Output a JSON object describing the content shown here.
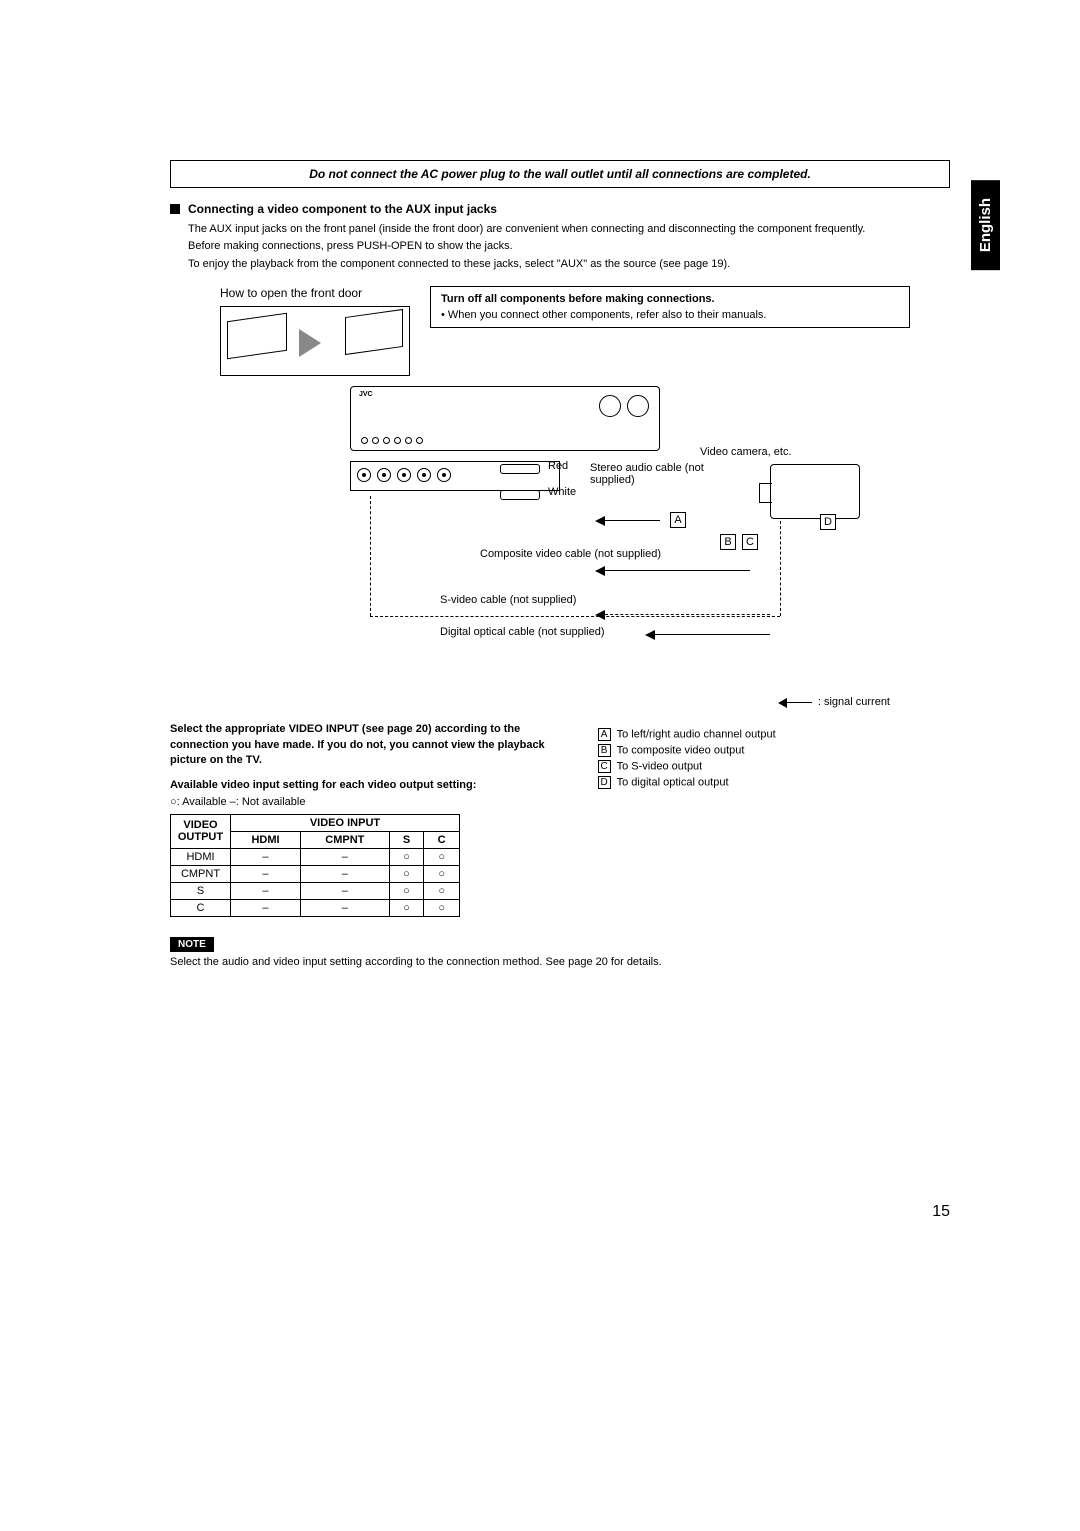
{
  "language_tab": "English",
  "warning": "Do not connect the AC power plug to the wall outlet until all connections are completed.",
  "section_title": "Connecting a video component to the AUX input jacks",
  "intro_1": "The AUX input jacks on the front panel (inside the front door) are convenient when connecting and disconnecting the component frequently.",
  "intro_2": "Before making connections, press PUSH-OPEN to show the jacks.",
  "intro_3": "To enjoy the playback from the component connected to these jacks, select \"AUX\" as the source (see page 19).",
  "door_caption": "How to open the front door",
  "tips_title": "Turn off all components before making connections.",
  "tips_bullet": "When you connect other components, refer also to their manuals.",
  "labels": {
    "red": "Red",
    "white": "White",
    "stereo_cable": "Stereo audio cable (not supplied)",
    "camera": "Video camera, etc.",
    "composite": "Composite video cable (not supplied)",
    "svideo": "S-video cable (not supplied)",
    "optical": "Digital optical cable (not supplied)"
  },
  "letters": {
    "A": "A",
    "B": "B",
    "C": "C",
    "D": "D"
  },
  "signal_current": ": signal current",
  "left_strong_1": "Select the appropriate VIDEO INPUT (see page 20) according to the connection you have made. If you do not, you cannot view the playback picture on the TV.",
  "left_strong_2": "Available video input setting for each video output setting:",
  "legend_avail": ": Available     –: Not available",
  "table": {
    "head_output": "VIDEO OUTPUT",
    "head_input": "VIDEO INPUT",
    "cols": [
      "HDMI",
      "CMPNT",
      "S",
      "C"
    ],
    "rows": [
      {
        "label": "HDMI",
        "cells": [
          "–",
          "–",
          "○",
          "○"
        ]
      },
      {
        "label": "CMPNT",
        "cells": [
          "–",
          "–",
          "○",
          "○"
        ]
      },
      {
        "label": "S",
        "cells": [
          "–",
          "–",
          "○",
          "○"
        ]
      },
      {
        "label": "C",
        "cells": [
          "–",
          "–",
          "○",
          "○"
        ]
      }
    ]
  },
  "outputs": {
    "A": "To left/right audio channel output",
    "B": "To composite video output",
    "C": "To S-video output",
    "D": "To digital optical output"
  },
  "note_label": "NOTE",
  "note_text": "Select the audio and video input setting according to the connection method. See page 20 for details.",
  "page_number": "15"
}
